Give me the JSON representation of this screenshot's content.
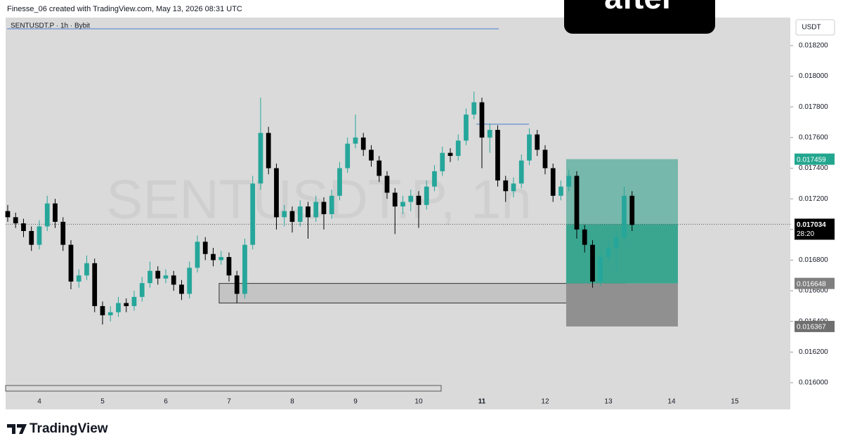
{
  "header": "Finesse_06 created with TradingView.com, May 13, 2026 08:31 UTC",
  "badge": "after",
  "brand": "TradingView",
  "chart_data": {
    "type": "candlestick",
    "title": "SENTUSDT.P · 1h · Bybit",
    "watermark": "SENTUSDT.P, 1h",
    "currency": "USDT",
    "up_color": "#26a69a",
    "down_color": "#000000",
    "xlim": [
      3.467,
      15.878
    ],
    "ylim": [
      0.015826,
      0.018383
    ],
    "xticks": [
      4,
      5,
      6,
      7,
      8,
      9,
      10,
      11,
      12,
      13,
      14,
      15
    ],
    "xtick_bold": 11,
    "yticks": [
      {
        "value": 0.016,
        "label": "0.016000"
      },
      {
        "value": 0.0162,
        "label": "0.016200"
      },
      {
        "value": 0.0164,
        "label": "0.016400"
      },
      {
        "value": 0.0166,
        "label": "0.016600"
      },
      {
        "value": 0.0168,
        "label": "0.016800"
      },
      {
        "value": 0.017,
        "label": "0.017000"
      },
      {
        "value": 0.0172,
        "label": "0.017200"
      },
      {
        "value": 0.0174,
        "label": "0.017400"
      },
      {
        "value": 0.0176,
        "label": "0.017600"
      },
      {
        "value": 0.0178,
        "label": "0.017800"
      },
      {
        "value": 0.018,
        "label": "0.018000"
      },
      {
        "value": 0.0182,
        "label": "0.018200"
      }
    ],
    "x": [
      3.5,
      3.625,
      3.75,
      3.875,
      4,
      4.125,
      4.25,
      4.375,
      4.5,
      4.625,
      4.75,
      4.875,
      5,
      5.125,
      5.25,
      5.375,
      5.5,
      5.625,
      5.75,
      5.875,
      6,
      6.125,
      6.25,
      6.375,
      6.5,
      6.625,
      6.75,
      6.875,
      7,
      7.125,
      7.25,
      7.375,
      7.5,
      7.625,
      7.75,
      7.875,
      8,
      8.125,
      8.25,
      8.375,
      8.5,
      8.625,
      8.75,
      8.875,
      9,
      9.125,
      9.25,
      9.375,
      9.5,
      9.625,
      9.75,
      9.875,
      10,
      10.125,
      10.25,
      10.375,
      10.5,
      10.625,
      10.75,
      10.875,
      11,
      11.125,
      11.25,
      11.375,
      11.5,
      11.625,
      11.75,
      11.875,
      12,
      12.125,
      12.25,
      12.375,
      12.5,
      12.625,
      12.75,
      12.875,
      13,
      13.125,
      13.25,
      13.375
    ],
    "ohlc": [
      [
        0.01712,
        0.01716,
        0.01705,
        0.01708
      ],
      [
        0.01708,
        0.01711,
        0.01701,
        0.01704
      ],
      [
        0.01704,
        0.01707,
        0.01695,
        0.01699
      ],
      [
        0.01699,
        0.01702,
        0.01686,
        0.0169
      ],
      [
        0.0169,
        0.01706,
        0.01687,
        0.01702
      ],
      [
        0.01702,
        0.01722,
        0.01699,
        0.01717
      ],
      [
        0.01717,
        0.0172,
        0.01701,
        0.01705
      ],
      [
        0.01705,
        0.01708,
        0.01686,
        0.0169
      ],
      [
        0.0169,
        0.01693,
        0.01661,
        0.01666
      ],
      [
        0.01666,
        0.01674,
        0.01662,
        0.0167
      ],
      [
        0.0167,
        0.01683,
        0.01667,
        0.01678
      ],
      [
        0.01678,
        0.01681,
        0.01646,
        0.0165
      ],
      [
        0.0165,
        0.01653,
        0.01638,
        0.01644
      ],
      [
        0.01644,
        0.0165,
        0.0164,
        0.01646
      ],
      [
        0.01646,
        0.01656,
        0.01643,
        0.01652
      ],
      [
        0.01652,
        0.01655,
        0.01646,
        0.0165
      ],
      [
        0.0165,
        0.0166,
        0.01647,
        0.01656
      ],
      [
        0.01656,
        0.01669,
        0.01653,
        0.01665
      ],
      [
        0.01665,
        0.01679,
        0.01662,
        0.01673
      ],
      [
        0.01673,
        0.01676,
        0.01664,
        0.01668
      ],
      [
        0.01668,
        0.01674,
        0.01665,
        0.0167
      ],
      [
        0.0167,
        0.01673,
        0.0166,
        0.01664
      ],
      [
        0.01664,
        0.01667,
        0.01654,
        0.01658
      ],
      [
        0.01658,
        0.01679,
        0.01655,
        0.01675
      ],
      [
        0.01675,
        0.01696,
        0.01672,
        0.01692
      ],
      [
        0.01692,
        0.01695,
        0.0168,
        0.01684
      ],
      [
        0.01684,
        0.01688,
        0.01676,
        0.0168
      ],
      [
        0.0168,
        0.01686,
        0.01677,
        0.01682
      ],
      [
        0.01682,
        0.01685,
        0.01666,
        0.0167
      ],
      [
        0.0167,
        0.01673,
        0.01652,
        0.01658
      ],
      [
        0.01658,
        0.01694,
        0.01655,
        0.0169
      ],
      [
        0.0169,
        0.01735,
        0.01687,
        0.0173
      ],
      [
        0.0173,
        0.01786,
        0.01726,
        0.01763
      ],
      [
        0.01763,
        0.01767,
        0.01736,
        0.0174
      ],
      [
        0.0174,
        0.01743,
        0.017,
        0.01708
      ],
      [
        0.01708,
        0.01716,
        0.01702,
        0.01712
      ],
      [
        0.01712,
        0.01715,
        0.01698,
        0.01705
      ],
      [
        0.01705,
        0.01719,
        0.01702,
        0.01715
      ],
      [
        0.01715,
        0.01718,
        0.01694,
        0.01708
      ],
      [
        0.01708,
        0.01722,
        0.01705,
        0.01718
      ],
      [
        0.01718,
        0.01721,
        0.017,
        0.0171
      ],
      [
        0.0171,
        0.01726,
        0.01707,
        0.01722
      ],
      [
        0.01722,
        0.01744,
        0.01719,
        0.0174
      ],
      [
        0.0174,
        0.0176,
        0.01737,
        0.01756
      ],
      [
        0.01756,
        0.01775,
        0.01753,
        0.0176
      ],
      [
        0.0176,
        0.01763,
        0.01748,
        0.01752
      ],
      [
        0.01752,
        0.01755,
        0.01741,
        0.01745
      ],
      [
        0.01745,
        0.01748,
        0.01731,
        0.01735
      ],
      [
        0.01735,
        0.01738,
        0.0172,
        0.01724
      ],
      [
        0.01724,
        0.01727,
        0.01697,
        0.01715
      ],
      [
        0.01715,
        0.01722,
        0.0171,
        0.01718
      ],
      [
        0.01718,
        0.01726,
        0.01712,
        0.01722
      ],
      [
        0.01722,
        0.01725,
        0.01701,
        0.01716
      ],
      [
        0.01716,
        0.01732,
        0.01713,
        0.01728
      ],
      [
        0.01728,
        0.01742,
        0.01725,
        0.01738
      ],
      [
        0.01738,
        0.01754,
        0.01735,
        0.0175
      ],
      [
        0.0175,
        0.01753,
        0.01744,
        0.01748
      ],
      [
        0.01748,
        0.01762,
        0.01745,
        0.01758
      ],
      [
        0.01758,
        0.01779,
        0.01755,
        0.01775
      ],
      [
        0.01775,
        0.0179,
        0.01772,
        0.01783
      ],
      [
        0.01783,
        0.01786,
        0.0174,
        0.0176
      ],
      [
        0.0176,
        0.01769,
        0.0175,
        0.01765
      ],
      [
        0.01765,
        0.01768,
        0.01728,
        0.01732
      ],
      [
        0.01732,
        0.01735,
        0.01718,
        0.01725
      ],
      [
        0.01725,
        0.01734,
        0.01721,
        0.0173
      ],
      [
        0.0173,
        0.01749,
        0.01727,
        0.01745
      ],
      [
        0.01745,
        0.01766,
        0.01742,
        0.01762
      ],
      [
        0.01762,
        0.01765,
        0.01748,
        0.01752
      ],
      [
        0.01752,
        0.01755,
        0.01736,
        0.0174
      ],
      [
        0.0174,
        0.01743,
        0.01718,
        0.01722
      ],
      [
        0.01722,
        0.01732,
        0.01719,
        0.01728
      ],
      [
        0.01728,
        0.01739,
        0.01725,
        0.01735
      ],
      [
        0.01735,
        0.01738,
        0.01694,
        0.017
      ],
      [
        0.017,
        0.01703,
        0.01685,
        0.0169
      ],
      [
        0.0169,
        0.01693,
        0.01662,
        0.01666
      ],
      [
        0.01666,
        0.01686,
        0.01663,
        0.01682
      ],
      [
        0.01682,
        0.01692,
        0.01679,
        0.01688
      ],
      [
        0.01688,
        0.01699,
        0.01672,
        0.01695
      ],
      [
        0.01695,
        0.01728,
        0.01692,
        0.01722
      ],
      [
        0.01722,
        0.01725,
        0.01699,
        0.01703
      ]
    ],
    "last_price": {
      "value": 0.017034,
      "countdown": "28:20"
    },
    "position": {
      "target": 0.017459,
      "entry": 0.016648,
      "stop": 0.016367,
      "x": [
        12.333,
        14.1
      ]
    },
    "zone": {
      "top": 0.016648,
      "bottom": 0.01652,
      "x": [
        6.844,
        13.267
      ]
    },
    "level": {
      "value": 0.017687,
      "x": [
        10.911,
        11.744
      ]
    }
  }
}
